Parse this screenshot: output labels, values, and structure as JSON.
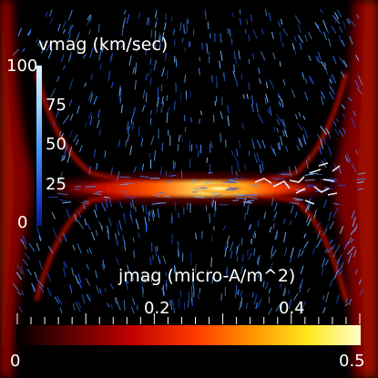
{
  "vmag_legend": {
    "title": "vmag (km/sec)",
    "max": "100",
    "ticks": [
      "75",
      "50",
      "25"
    ],
    "min": "0"
  },
  "jmag_legend": {
    "title": "jmag (micro-A/m^2)",
    "ticks": [
      "0.2",
      "0.4"
    ],
    "min": "0",
    "max": "0.5"
  },
  "colors": {
    "background": "#000000",
    "current_sheet_hot": "#ffe840",
    "current_sheet_warm": "#ff3a00",
    "current_sheet_dark": "#8a0000",
    "velocity_vectors": "#3d7cff"
  }
}
